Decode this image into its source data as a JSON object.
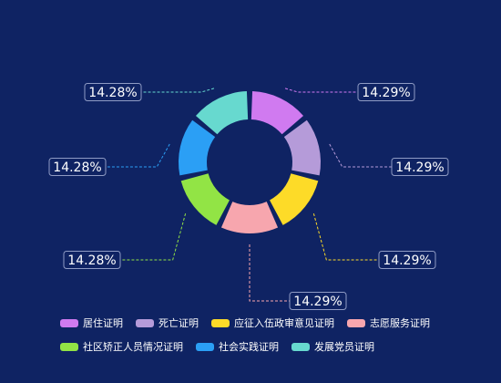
{
  "chart_data": {
    "type": "pie",
    "variant": "donut",
    "title": "",
    "categories": [
      "居住证明",
      "死亡证明",
      "应征入伍政审意见证明",
      "志愿服务证明",
      "社区矫正人员情况证明",
      "社会实践证明",
      "发展党员证明"
    ],
    "values": [
      1,
      1,
      1,
      1,
      1,
      1,
      1
    ],
    "labels": [
      "14.29%",
      "14.29%",
      "14.29%",
      "14.29%",
      "14.28%",
      "14.28%",
      "14.28%"
    ],
    "colors": [
      "#d07af0",
      "#b59bd9",
      "#fddb28",
      "#f7a6ae",
      "#92e445",
      "#2b9ff5",
      "#67d9cf"
    ],
    "legend_position": "bottom"
  },
  "background": "#0f2363"
}
